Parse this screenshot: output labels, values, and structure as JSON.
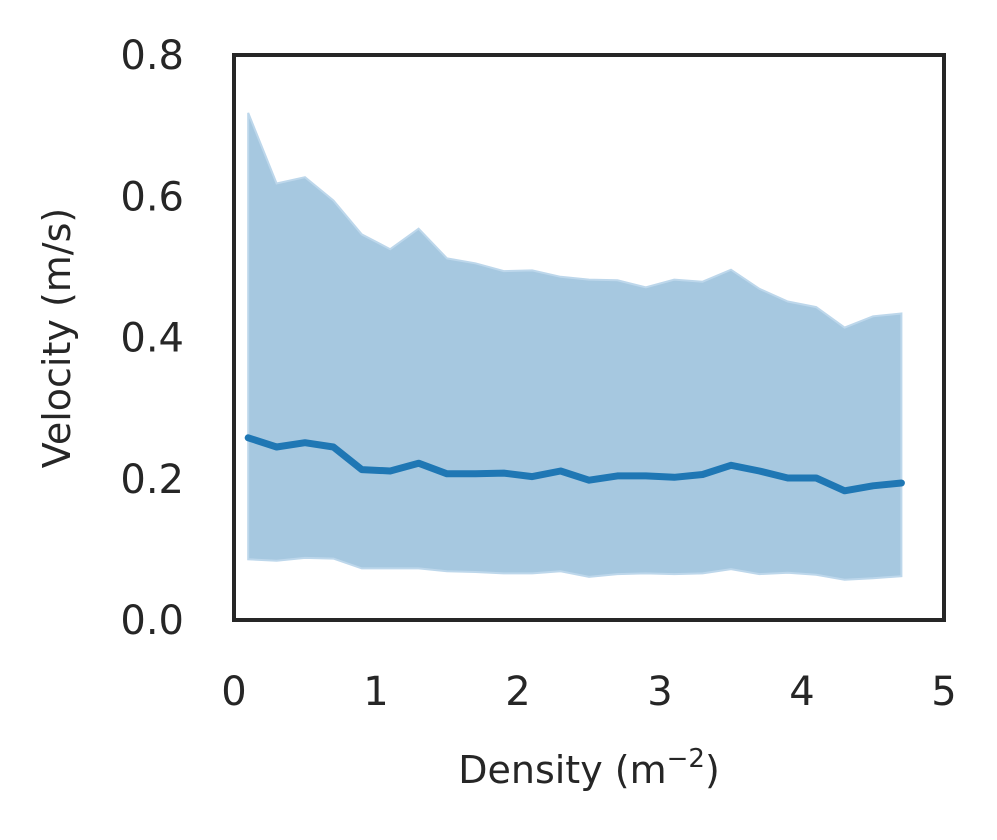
{
  "chart_data": {
    "type": "line",
    "xlabel": "Density (m",
    "xlabel_sup": "−2",
    "xlabel_suffix": ")",
    "ylabel": "Velocity (m/s)",
    "xlim": [
      0,
      5
    ],
    "ylim": [
      0,
      0.8
    ],
    "xticks": [
      0,
      1,
      2,
      3,
      4,
      5
    ],
    "yticks": [
      0.0,
      0.2,
      0.4,
      0.6,
      0.8
    ],
    "xtick_labels": [
      "0",
      "1",
      "2",
      "3",
      "4",
      "5"
    ],
    "ytick_labels": [
      "0.0",
      "0.2",
      "0.4",
      "0.6",
      "0.8"
    ],
    "grid": false,
    "x": [
      0.1,
      0.3,
      0.5,
      0.7,
      0.9,
      1.1,
      1.3,
      1.5,
      1.7,
      1.9,
      2.1,
      2.3,
      2.5,
      2.7,
      2.9,
      3.1,
      3.3,
      3.5,
      3.7,
      3.9,
      4.1,
      4.3,
      4.5,
      4.7
    ],
    "series": [
      {
        "values": [
          0.258,
          0.245,
          0.251,
          0.245,
          0.213,
          0.211,
          0.222,
          0.207,
          0.207,
          0.208,
          0.203,
          0.211,
          0.198,
          0.204,
          0.204,
          0.202,
          0.206,
          0.219,
          0.211,
          0.201,
          0.201,
          0.183,
          0.19,
          0.194
        ],
        "upper": [
          0.718,
          0.618,
          0.627,
          0.594,
          0.546,
          0.525,
          0.554,
          0.512,
          0.505,
          0.494,
          0.495,
          0.486,
          0.482,
          0.481,
          0.471,
          0.482,
          0.479,
          0.496,
          0.469,
          0.451,
          0.443,
          0.414,
          0.43,
          0.434
        ],
        "lower": [
          0.086,
          0.084,
          0.088,
          0.087,
          0.073,
          0.073,
          0.073,
          0.069,
          0.068,
          0.066,
          0.066,
          0.069,
          0.061,
          0.065,
          0.066,
          0.065,
          0.066,
          0.072,
          0.065,
          0.067,
          0.064,
          0.057,
          0.059,
          0.062
        ]
      }
    ],
    "colors": {
      "line": "#1f77b4",
      "band": "#a6c8e0",
      "band_edge": "#bdd7eb",
      "axes": "#262626"
    }
  }
}
